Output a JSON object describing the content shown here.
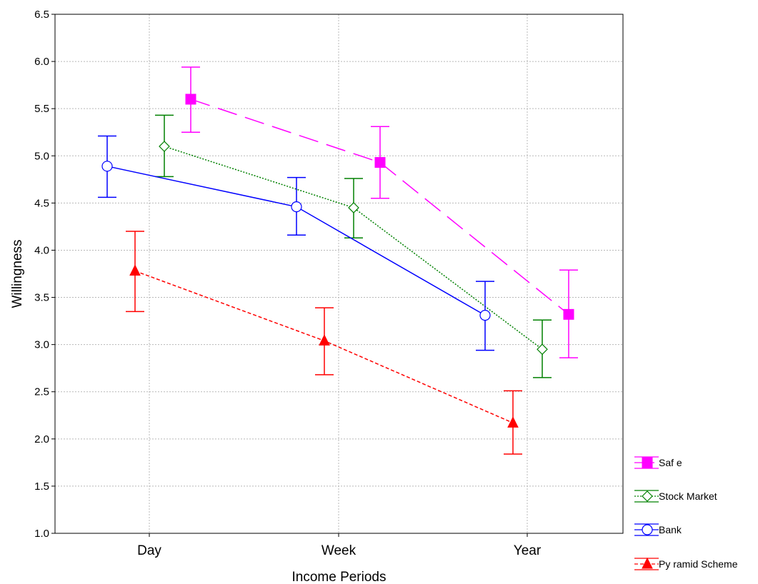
{
  "chart_data": {
    "type": "line",
    "xlabel": "Income Periods",
    "ylabel": "Willingness",
    "ylim": [
      1.0,
      6.5
    ],
    "yticks": [
      "1.0",
      "1.5",
      "2.0",
      "2.5",
      "3.0",
      "3.5",
      "4.0",
      "4.5",
      "5.0",
      "5.5",
      "6.0",
      "6.5"
    ],
    "categories": [
      "Day",
      "Week",
      "Year"
    ],
    "grid": true,
    "legend_position": "bottom-right",
    "series": [
      {
        "name": "Saf e",
        "values": [
          5.6,
          4.93,
          3.32
        ],
        "lower": [
          5.25,
          4.55,
          2.86
        ],
        "upper": [
          5.94,
          5.31,
          3.79
        ],
        "color": "#ff00ff",
        "marker": "square-filled",
        "dash": "long-dash"
      },
      {
        "name": "Stock Market",
        "values": [
          5.1,
          4.45,
          2.95
        ],
        "lower": [
          4.78,
          4.13,
          2.65
        ],
        "upper": [
          5.43,
          4.76,
          3.26
        ],
        "color": "#008000",
        "marker": "diamond-open",
        "dash": "dotted"
      },
      {
        "name": "Bank",
        "values": [
          4.89,
          4.46,
          3.31
        ],
        "lower": [
          4.56,
          4.16,
          2.94
        ],
        "upper": [
          5.21,
          4.77,
          3.67
        ],
        "color": "#0000ff",
        "marker": "circle-open",
        "dash": "solid"
      },
      {
        "name": "Py ramid Scheme",
        "values": [
          3.78,
          3.04,
          2.17
        ],
        "lower": [
          3.35,
          2.68,
          1.84
        ],
        "upper": [
          4.2,
          3.39,
          2.51
        ],
        "color": "#ff0000",
        "marker": "triangle-filled",
        "dash": "dashed"
      }
    ]
  }
}
